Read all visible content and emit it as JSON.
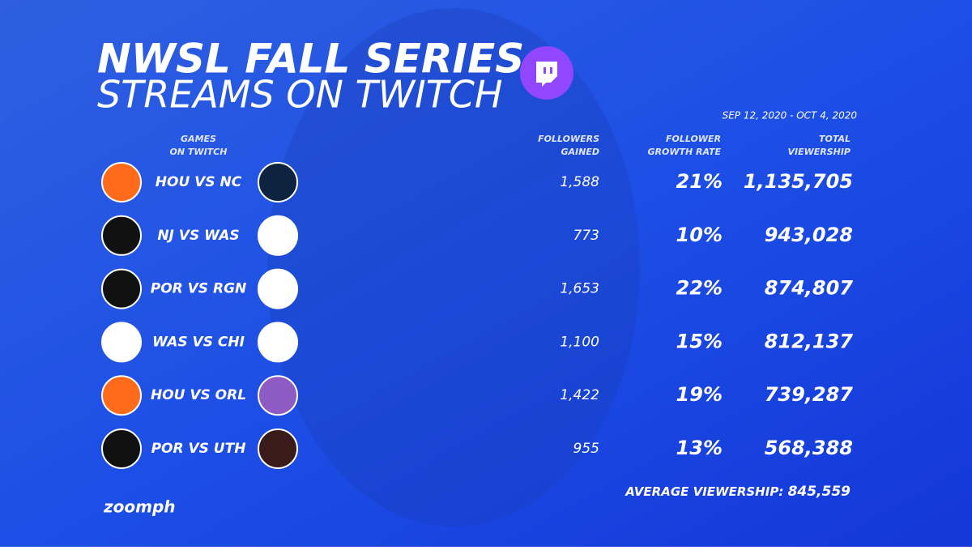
{
  "header": {
    "title_lines": [
      "NWSL FALL SERIES",
      "STREAMS ON TWITCH"
    ],
    "date_range": "SEP 12, 2020 - OCT 4, 2020"
  },
  "table": {
    "columns": [
      [
        "GAMES",
        "ON TWITCH"
      ],
      [
        "FOLLOWERS",
        "GAINED"
      ],
      [
        "FOLLOWER",
        "GROWTH RATE"
      ],
      [
        "TOTAL",
        "VIEWERSHIP"
      ]
    ],
    "rows": [
      [
        "HOU VS NC",
        "1,588",
        "21%",
        "1,135,705"
      ],
      [
        "NJ VS WAS",
        "773",
        "10%",
        "943,028"
      ],
      [
        "POR VS RGN",
        "1,653",
        "22%",
        "874,807"
      ],
      [
        "WAS VS CHI",
        "1,100",
        "15%",
        "812,137"
      ],
      [
        "HOU VS ORL",
        "1,422",
        "19%",
        "739,287"
      ],
      [
        "POR VS UTH",
        "955",
        "13%",
        "568,388"
      ]
    ]
  },
  "footer": {
    "average_label": "AVERAGE VIEWERSHIP:",
    "average_value": "845,559",
    "brand": "zoomph"
  }
}
